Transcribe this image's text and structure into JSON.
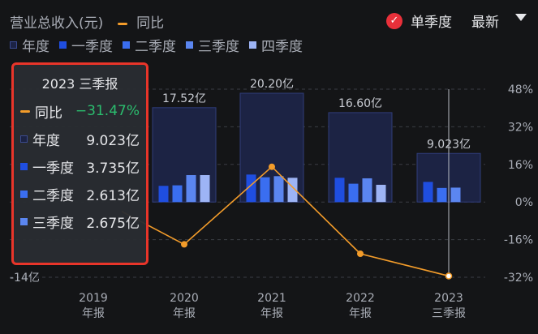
{
  "header": {
    "title": "营业总收入(元)",
    "yoy_label": "同比",
    "mode_label": "单季度",
    "latest_label": "最新"
  },
  "legend": [
    {
      "name": "年度",
      "color": "#1c2344"
    },
    {
      "name": "一季度",
      "color": "#1f4ee0"
    },
    {
      "name": "二季度",
      "color": "#3a6ef0"
    },
    {
      "name": "三季度",
      "color": "#5b86f0"
    },
    {
      "name": "四季度",
      "color": "#9db4f5"
    }
  ],
  "chart_data": {
    "type": "bar",
    "categories": [
      "2019\n年报",
      "2020\n年报",
      "2021\n年报",
      "2022\n年报",
      "2023\n三季报"
    ],
    "left_axis_ticks": [
      "-14亿"
    ],
    "right_axis_ticks": [
      "48%",
      "32%",
      "16%",
      "0%",
      "-16%",
      "-32%"
    ],
    "right_axis_range": [
      -32,
      48
    ],
    "annual_labels": [
      "",
      "17.52亿",
      "20.20亿",
      "16.60亿",
      "9.023亿"
    ],
    "series": [
      {
        "name": "年度",
        "values": [
          null,
          17.52,
          20.2,
          16.6,
          9.023
        ]
      },
      {
        "name": "一季度",
        "values": [
          null,
          3.0,
          5.1,
          4.5,
          3.735
        ]
      },
      {
        "name": "二季度",
        "values": [
          null,
          3.1,
          4.6,
          3.4,
          2.613
        ]
      },
      {
        "name": "三季度",
        "values": [
          null,
          5.0,
          4.8,
          4.4,
          2.675
        ]
      },
      {
        "name": "四季度",
        "values": [
          null,
          5.0,
          4.5,
          3.2,
          null
        ]
      }
    ],
    "yoy": {
      "name": "同比",
      "values": [
        null,
        -18,
        15,
        -22,
        -31.47
      ]
    }
  },
  "tooltip": {
    "title": "2023 三季报",
    "rows": [
      {
        "label": "同比",
        "value": "−31.47%"
      },
      {
        "label": "年度",
        "value": "9.023亿"
      },
      {
        "label": "一季度",
        "value": "3.735亿"
      },
      {
        "label": "二季度",
        "value": "2.613亿"
      },
      {
        "label": "三季度",
        "value": "2.675亿"
      }
    ]
  }
}
